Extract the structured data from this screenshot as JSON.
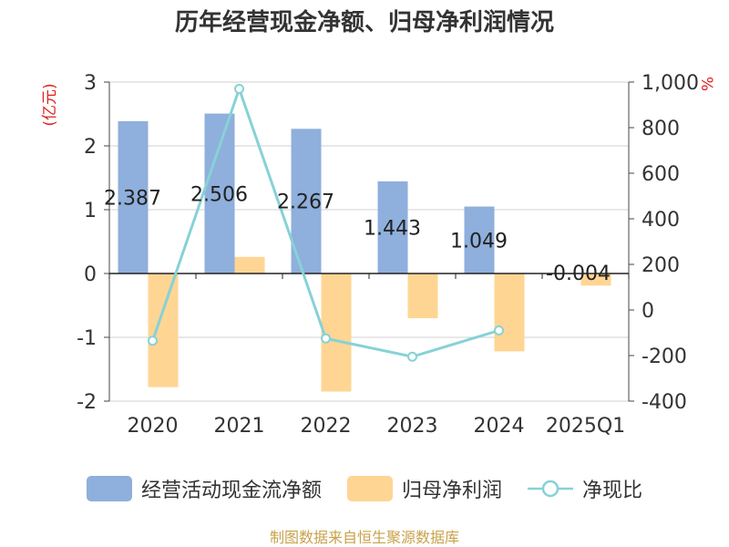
{
  "title": "历年经营现金净额、归母净利润情况",
  "source": "制图数据来自恒生聚源数据库",
  "chart_data": {
    "type": "bar+line",
    "title": "历年经营现金净额、归母净利润情况",
    "categories": [
      "2020",
      "2021",
      "2022",
      "2023",
      "2024",
      "2025Q1"
    ],
    "left_axis": {
      "label": "(亿元)",
      "ticks": [
        "3",
        "2",
        "1",
        "0",
        "-1",
        "-2"
      ],
      "ylim": [
        -2,
        3
      ]
    },
    "right_axis": {
      "label": "%",
      "ticks": [
        "1,000",
        "800",
        "600",
        "400",
        "200",
        "0",
        "-200",
        "-400"
      ],
      "ylim": [
        -400,
        1000
      ]
    },
    "series": [
      {
        "name": "经营活动现金流净额",
        "type": "bar",
        "axis": "left",
        "color": "#8fafdc",
        "values": [
          2.387,
          2.506,
          2.267,
          1.443,
          1.049,
          -0.004
        ],
        "labels": [
          "2.387",
          "2.506",
          "2.267",
          "1.443",
          "1.049",
          "-0.004"
        ]
      },
      {
        "name": "归母净利润",
        "type": "bar",
        "axis": "left",
        "color": "#ffd594",
        "values": [
          -1.78,
          0.26,
          -1.85,
          -0.7,
          -1.22,
          -0.19
        ]
      },
      {
        "name": "净现比",
        "type": "line",
        "axis": "right",
        "color": "#86d2d6",
        "values": [
          -135,
          970,
          -125,
          -205,
          -90,
          null
        ]
      }
    ]
  }
}
